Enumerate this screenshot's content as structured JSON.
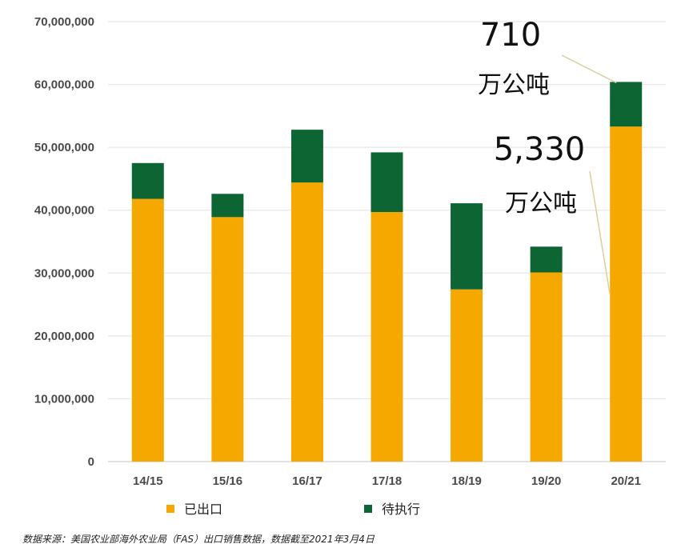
{
  "chart_data": {
    "type": "bar",
    "stacked": true,
    "categories": [
      "14/15",
      "15/16",
      "16/17",
      "17/18",
      "18/19",
      "19/20",
      "20/21"
    ],
    "series": [
      {
        "name": "已出口",
        "color": "#F5A800",
        "values": [
          41800000,
          38900000,
          44400000,
          39700000,
          27400000,
          30100000,
          53300000
        ]
      },
      {
        "name": "待执行",
        "color": "#0E6534",
        "values": [
          5700000,
          3700000,
          8400000,
          9500000,
          13700000,
          4100000,
          7100000
        ]
      }
    ],
    "ylim": [
      0,
      70000000
    ],
    "yticks": [
      "0",
      "10,000,000",
      "20,000,000",
      "30,000,000",
      "40,000,000",
      "50,000,000",
      "60,000,000",
      "70,000,000"
    ],
    "ytick_values": [
      0,
      10000000,
      20000000,
      30000000,
      40000000,
      50000000,
      60000000,
      70000000
    ],
    "grid": true,
    "legend": "bottom",
    "annotations": [
      {
        "number": "710",
        "unit": "万公吨",
        "target_category": "20/21",
        "target_series": "待执行"
      },
      {
        "number": "5,330",
        "unit": "万公吨",
        "target_category": "20/21",
        "target_series": "已出口"
      }
    ],
    "source": "数据来源：美国农业部海外农业局（FAS）出口销售数据，数据截至2021年3月4日"
  }
}
